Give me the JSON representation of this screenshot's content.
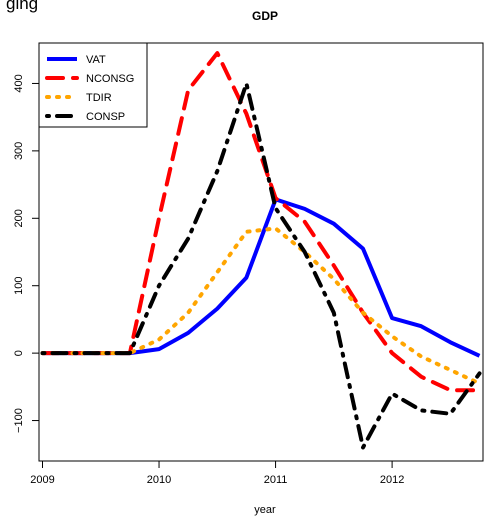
{
  "header_fragment": "ging",
  "chart_data": {
    "type": "line",
    "title": "GDP",
    "xlabel": "year",
    "ylabel": "",
    "xlim": [
      2008.97,
      2012.78
    ],
    "ylim": [
      -160,
      460
    ],
    "x_ticks": [
      2009,
      2010,
      2011,
      2012
    ],
    "x_tick_labels": [
      "2009",
      "2010",
      "2011",
      "2012"
    ],
    "y_ticks": [
      -100,
      0,
      100,
      200,
      300,
      400
    ],
    "y_tick_labels": [
      "−100",
      "0",
      "100",
      "200",
      "300",
      "400"
    ],
    "grid": false,
    "legend_position": "top-left",
    "series": [
      {
        "name": "VAT",
        "color": "#0000ff",
        "dash": "solid",
        "x": [
          2009.0,
          2009.25,
          2009.5,
          2009.75,
          2010.0,
          2010.25,
          2010.5,
          2010.75,
          2011.0,
          2011.25,
          2011.5,
          2011.75,
          2012.0,
          2012.25,
          2012.5,
          2012.75
        ],
        "values": [
          0,
          0,
          0,
          0,
          6,
          30,
          66,
          112,
          228,
          214,
          192,
          155,
          52,
          40,
          16,
          -4
        ]
      },
      {
        "name": "NCONSG",
        "color": "#ff0000",
        "dash": "dashed",
        "x": [
          2009.0,
          2009.25,
          2009.5,
          2009.75,
          2010.0,
          2010.25,
          2010.5,
          2010.75,
          2011.0,
          2011.25,
          2011.5,
          2011.75,
          2012.0,
          2012.25,
          2012.5,
          2012.75
        ],
        "values": [
          0,
          0,
          0,
          0,
          200,
          390,
          445,
          355,
          230,
          195,
          130,
          60,
          0,
          -35,
          -55,
          -55
        ]
      },
      {
        "name": "TDIR",
        "color": "#ffa500",
        "dash": "dotted",
        "x": [
          2009.0,
          2009.25,
          2009.5,
          2009.75,
          2010.0,
          2010.25,
          2010.5,
          2010.75,
          2011.0,
          2011.25,
          2011.5,
          2011.75,
          2012.0,
          2012.25,
          2012.5,
          2012.75
        ],
        "values": [
          0,
          0,
          0,
          0,
          20,
          60,
          120,
          180,
          185,
          150,
          110,
          60,
          25,
          -5,
          -25,
          -45
        ]
      },
      {
        "name": "CONSP",
        "color": "#000000",
        "dash": "dotdash",
        "x": [
          2009.0,
          2009.25,
          2009.5,
          2009.75,
          2010.0,
          2010.25,
          2010.5,
          2010.75,
          2011.0,
          2011.25,
          2011.5,
          2011.75,
          2012.0,
          2012.25,
          2012.5,
          2012.75
        ],
        "values": [
          0,
          0,
          0,
          0,
          100,
          170,
          270,
          400,
          215,
          150,
          60,
          -140,
          -60,
          -85,
          -90,
          -30
        ]
      }
    ]
  }
}
